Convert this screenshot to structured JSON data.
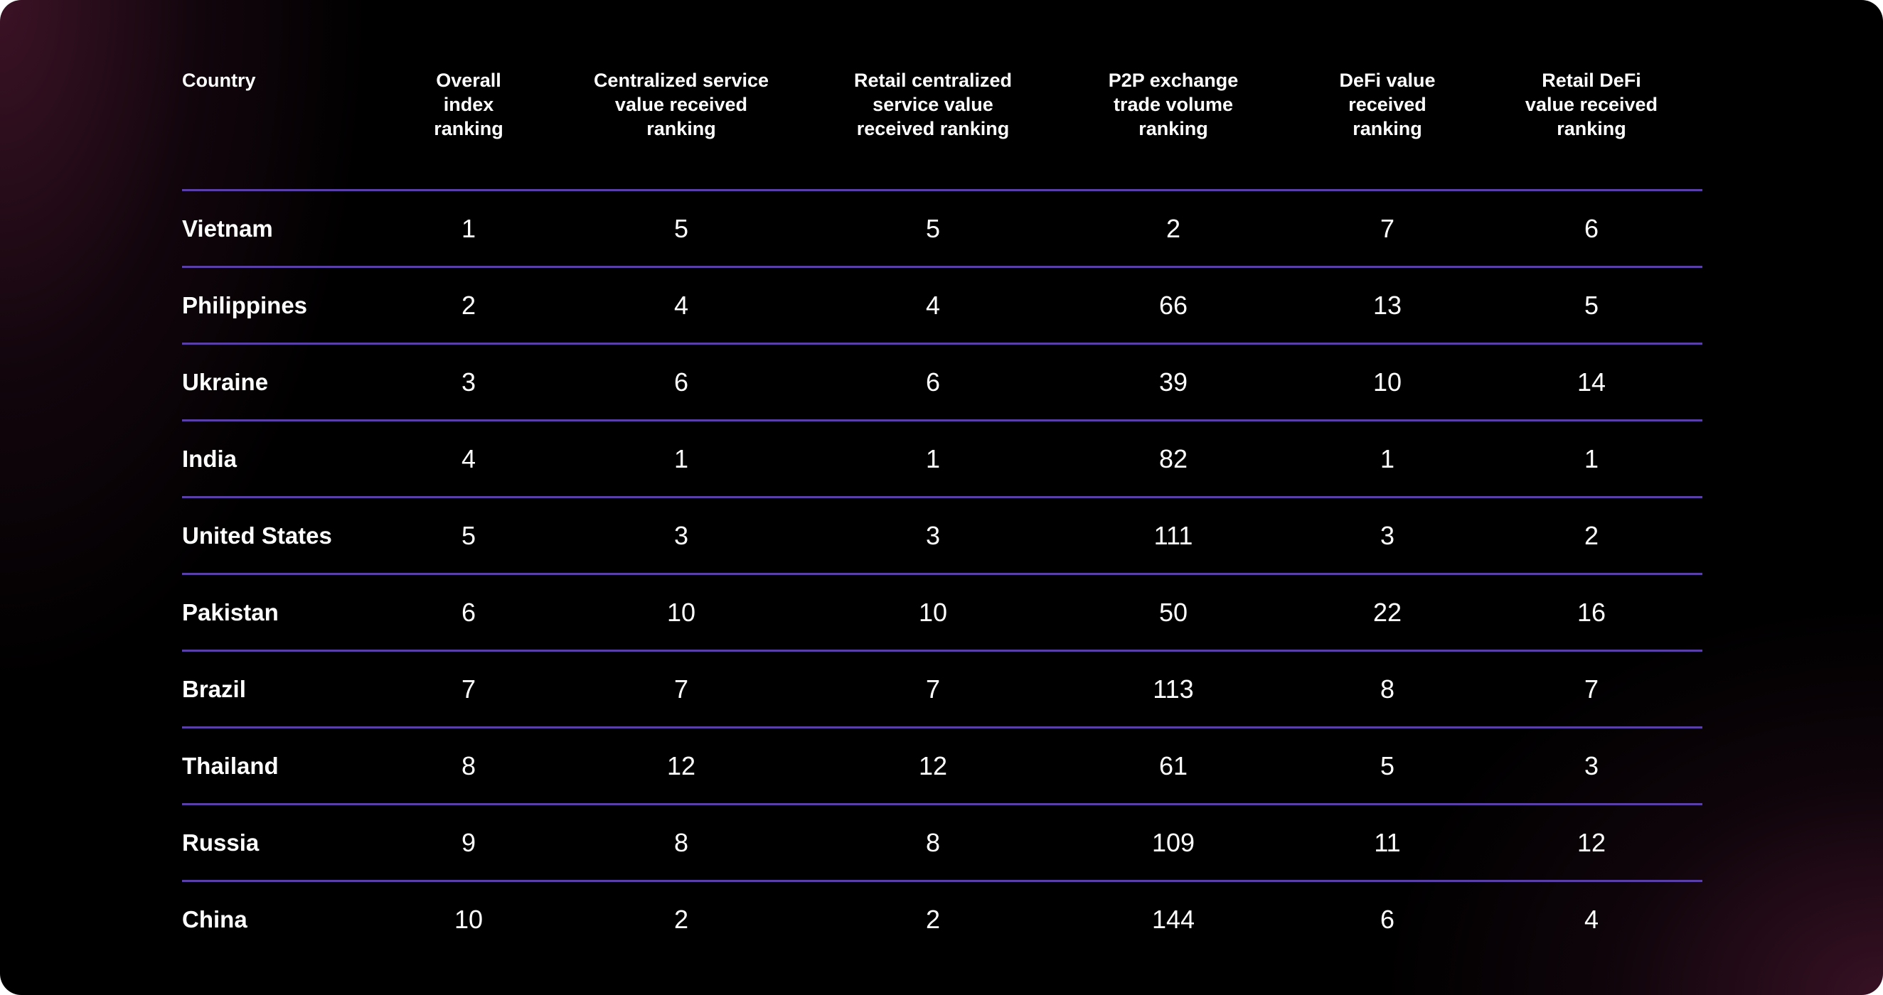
{
  "colors": {
    "background": "#000000",
    "vignette": "#46162c",
    "rule": "#5b3fa8",
    "text": "#ffffff"
  },
  "chart_data": {
    "type": "table",
    "columns": [
      "Country",
      "Overall index ranking",
      "Centralized service value received ranking",
      "Retail centralized service value received ranking",
      "P2P exchange trade volume ranking",
      "DeFi value received ranking",
      "Retail DeFi value received ranking"
    ],
    "rows": [
      [
        "Vietnam",
        "1",
        "5",
        "5",
        "2",
        "7",
        "6"
      ],
      [
        "Philippines",
        "2",
        "4",
        "4",
        "66",
        "13",
        "5"
      ],
      [
        "Ukraine",
        "3",
        "6",
        "6",
        "39",
        "10",
        "14"
      ],
      [
        "India",
        "4",
        "1",
        "1",
        "82",
        "1",
        "1"
      ],
      [
        "United States",
        "5",
        "3",
        "3",
        "111",
        "3",
        "2"
      ],
      [
        "Pakistan",
        "6",
        "10",
        "10",
        "50",
        "22",
        "16"
      ],
      [
        "Brazil",
        "7",
        "7",
        "7",
        "113",
        "8",
        "7"
      ],
      [
        "Thailand",
        "8",
        "12",
        "12",
        "61",
        "5",
        "3"
      ],
      [
        "Russia",
        "9",
        "8",
        "8",
        "109",
        "11",
        "12"
      ],
      [
        "China",
        "10",
        "2",
        "2",
        "144",
        "6",
        "4"
      ]
    ]
  }
}
